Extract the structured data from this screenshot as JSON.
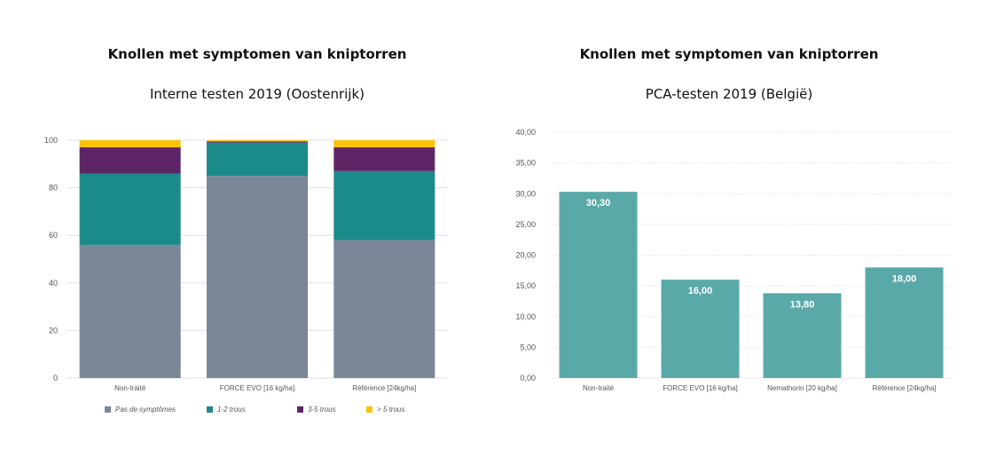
{
  "chart_data": [
    {
      "type": "bar",
      "stacked": true,
      "title": "Knollen met symptomen van kniptorren",
      "subtitle": "Interne testen 2019 (Oostenrijk)",
      "categories": [
        "Non-traité",
        "FORCE EVO [16 kg/ha]",
        "Référence [24kg/ha]"
      ],
      "series": [
        {
          "name": "Pas de symptômes",
          "values": [
            56,
            85,
            58
          ],
          "color": "#7b8797"
        },
        {
          "name": "1-2 trous",
          "values": [
            30,
            14,
            29
          ],
          "color": "#1b8a8a"
        },
        {
          "name": "3-5 trous",
          "values": [
            11,
            0.5,
            10
          ],
          "color": "#5e2566"
        },
        {
          "name": "> 5 trous",
          "values": [
            3,
            0.5,
            3
          ],
          "color": "#fcc20a"
        }
      ],
      "yticks": [
        "0",
        "20",
        "40",
        "60",
        "80",
        "100"
      ],
      "ylim": [
        0,
        100
      ],
      "grid": true,
      "legend": "bottom"
    },
    {
      "type": "bar",
      "title": "Knollen met symptomen van kniptorren",
      "subtitle": "PCA-testen 2019 (België)",
      "categories": [
        "Non-traité",
        "FORCE EVO [16 kg/ha]",
        "Nemathorin [20 kg/ha]",
        "Référence [24kg/ha]"
      ],
      "values": [
        30.3,
        16.0,
        13.8,
        18.0
      ],
      "value_labels": [
        "30,30",
        "16,00",
        "13,80",
        "18,00"
      ],
      "yticks": [
        "0,00",
        "5,00",
        "10,00",
        "15,00",
        "20,00",
        "25,00",
        "30,00",
        "35,00",
        "40,00"
      ],
      "ylim": [
        0,
        40
      ],
      "grid": true,
      "color": "#5aa9a9"
    }
  ]
}
